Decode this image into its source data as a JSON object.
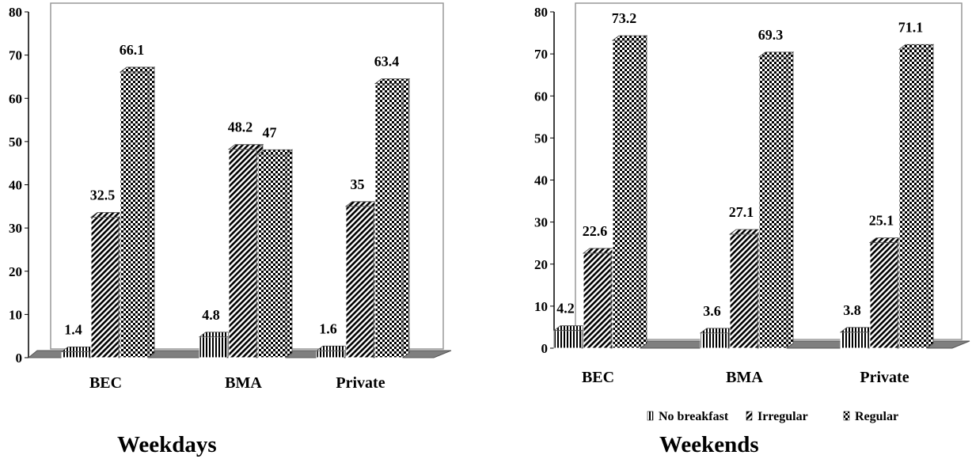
{
  "chart_data": [
    {
      "type": "bar",
      "title": "Weekdays",
      "categories": [
        "BEC",
        "BMA",
        "Private"
      ],
      "ylim": [
        0,
        80
      ],
      "yticks": [
        0,
        10,
        20,
        30,
        40,
        50,
        60,
        70,
        80
      ],
      "series": [
        {
          "name": "No breakfast",
          "values": [
            1.4,
            4.8,
            1.6
          ]
        },
        {
          "name": "Irregular",
          "values": [
            32.5,
            48.2,
            35
          ]
        },
        {
          "name": "Regular",
          "values": [
            66.1,
            47,
            63.4
          ]
        }
      ],
      "grid": false,
      "legend": "none"
    },
    {
      "type": "bar",
      "title": "Weekends",
      "categories": [
        "BEC",
        "BMA",
        "Private"
      ],
      "ylim": [
        0,
        80
      ],
      "yticks": [
        0,
        10,
        20,
        30,
        40,
        50,
        60,
        70,
        80
      ],
      "series": [
        {
          "name": "No breakfast",
          "values": [
            4.2,
            3.6,
            3.8
          ]
        },
        {
          "name": "Irregular",
          "values": [
            22.6,
            27.1,
            25.1
          ]
        },
        {
          "name": "Regular",
          "values": [
            73.2,
            69.3,
            71.1
          ]
        }
      ],
      "grid": false,
      "legend": "bottom-right"
    }
  ],
  "legend": {
    "items": [
      {
        "label": "No breakfast",
        "pattern": "vertical-stripes"
      },
      {
        "label": "Irregular",
        "pattern": "diagonal-hatch"
      },
      {
        "label": "Regular",
        "pattern": "checkerboard"
      }
    ]
  },
  "colors": {
    "floor": "#7f7f7f",
    "ink": "#000000",
    "background": "#ffffff"
  }
}
